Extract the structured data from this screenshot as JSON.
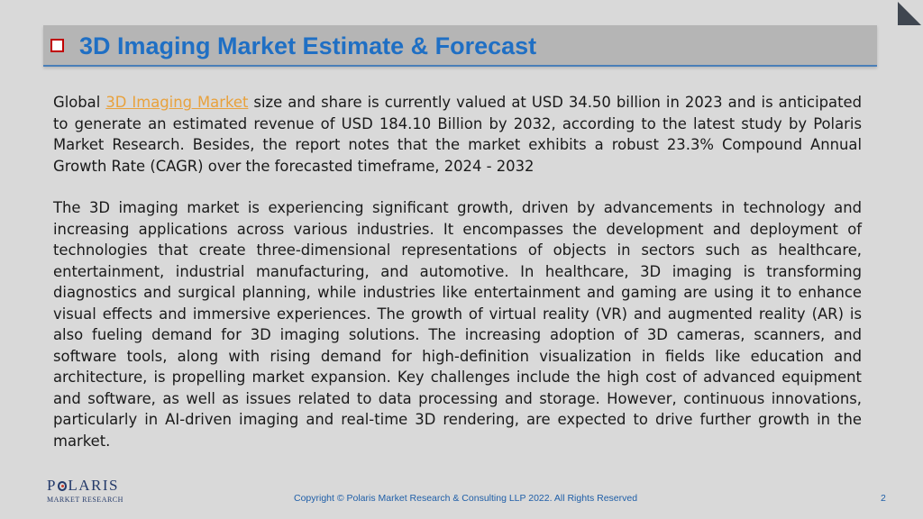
{
  "title": "3D Imaging Market Estimate & Forecast",
  "paragraph1": {
    "before_link": "Global ",
    "link": "3D Imaging Market",
    "after_link": " size and share is currently valued at USD 34.50 billion in 2023 and is anticipated to generate an estimated revenue of USD 184.10 Billion by 2032, according to the latest study by Polaris Market Research. Besides, the report notes that the market exhibits a robust 23.3% Compound Annual Growth Rate (CAGR) over the forecasted timeframe, 2024 - 2032"
  },
  "paragraph2": "The 3D imaging market is experiencing significant growth, driven by advancements in technology and increasing applications across various industries. It encompasses the development and deployment of technologies that create three-dimensional representations of objects in sectors such as healthcare, entertainment, industrial manufacturing, and automotive. In healthcare, 3D imaging is transforming diagnostics and surgical planning, while industries like entertainment and gaming are using it to enhance visual effects and immersive experiences. The growth of virtual reality (VR) and augmented reality (AR) is also fueling demand for 3D imaging solutions. The increasing adoption of 3D cameras, scanners, and software tools, along with rising demand for high-definition visualization in fields like education and architecture, is propelling market expansion. Key challenges include the high cost of advanced equipment and software, as well as issues related to data processing and storage. However, continuous innovations, particularly in AI-driven imaging and real-time 3D rendering, are expected to drive further growth in the market.",
  "logo": {
    "main_left": "P",
    "main_right": "LARIS",
    "sub": "MARKET RESEARCH"
  },
  "footer": {
    "copyright": "Copyright © Polaris Market Research & Consulting LLP 2022. All Rights Reserved",
    "page_number": "2"
  },
  "colors": {
    "title": "#1f6fc4",
    "link": "#e8a13c",
    "bullet_border": "#c00000",
    "footer_text": "#1f5fa8"
  }
}
